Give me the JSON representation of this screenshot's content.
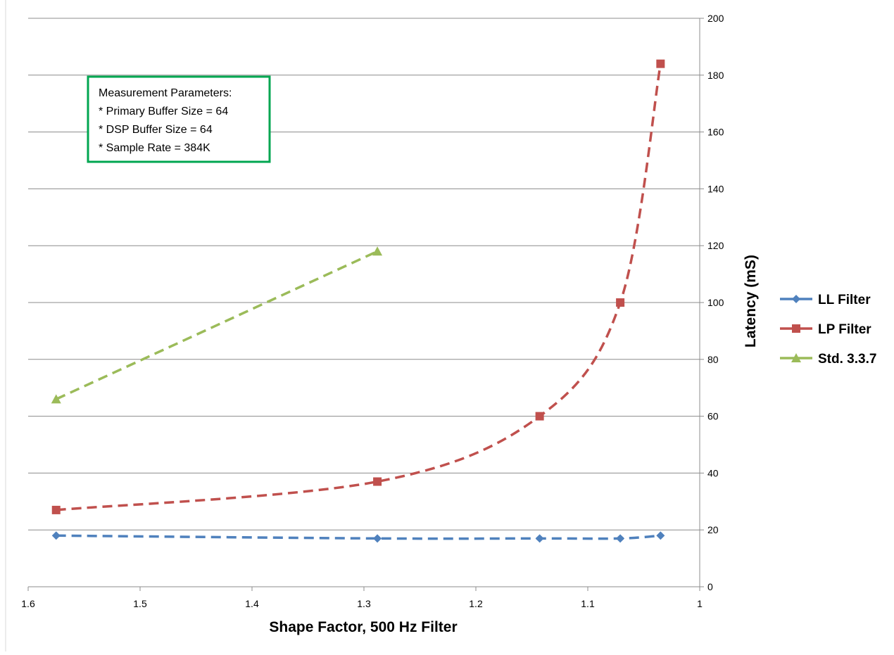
{
  "chart_data": {
    "type": "scatter",
    "title": "",
    "xlabel": "Shape Factor, 500 Hz Filter",
    "ylabel": "Latency (mS)",
    "xlim": [
      1.6,
      1.0
    ],
    "x_reversed": true,
    "ylim": [
      0,
      200
    ],
    "x_ticks": [
      "1.6",
      "1.5",
      "1.4",
      "1.3",
      "1.2",
      "1.1",
      "1"
    ],
    "x_tick_values": [
      1.6,
      1.5,
      1.4,
      1.3,
      1.2,
      1.1,
      1.0
    ],
    "y_ticks": [
      "0",
      "20",
      "40",
      "60",
      "80",
      "100",
      "120",
      "140",
      "160",
      "180",
      "200"
    ],
    "y_tick_values": [
      0,
      20,
      40,
      60,
      80,
      100,
      120,
      140,
      160,
      180,
      200
    ],
    "y_axis_side": "right",
    "grid": "horizontal",
    "legend_position": "right",
    "series": [
      {
        "name": "LL Filter",
        "color": "#4F81BD",
        "marker": "diamond",
        "line": "dashed smooth",
        "x": [
          1.575,
          1.288,
          1.143,
          1.071,
          1.035
        ],
        "y": [
          18,
          17,
          17,
          17,
          18
        ]
      },
      {
        "name": "LP Filter",
        "color": "#C0504D",
        "marker": "square",
        "line": "dashed smooth",
        "x": [
          1.575,
          1.288,
          1.143,
          1.071,
          1.035
        ],
        "y": [
          27,
          37,
          60,
          100,
          184
        ]
      },
      {
        "name": "Std. 3.3.7",
        "color": "#9BBB59",
        "marker": "triangle",
        "line": "dashed",
        "x": [
          1.575,
          1.288
        ],
        "y": [
          66,
          118
        ]
      }
    ],
    "annotation": {
      "border_color": "#00A650",
      "lines": [
        "Measurement Parameters:",
        "* Primary Buffer Size = 64",
        "* DSP Buffer Size = 64",
        "* Sample Rate = 384K"
      ]
    }
  }
}
